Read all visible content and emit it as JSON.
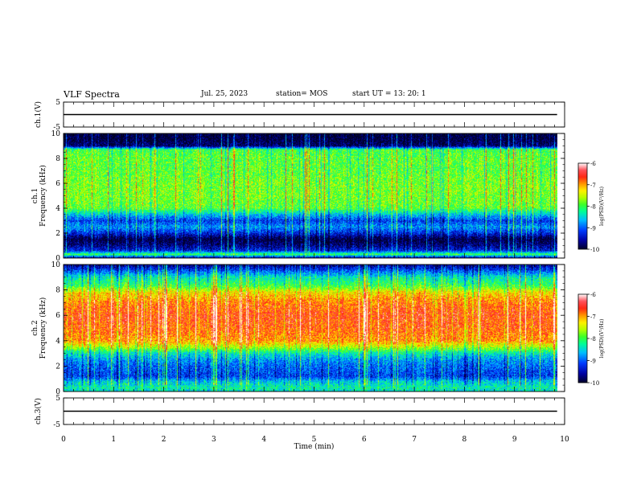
{
  "header": {
    "title": "VLF Spectra",
    "date": "Jul. 25, 2023",
    "station": "station= MOS",
    "start_ut": "start  UT =   13: 20: 1"
  },
  "chart_data": [
    {
      "type": "line",
      "ylabel": "ch.1(V)",
      "yticks": [
        "5",
        "-5"
      ],
      "ylim": [
        -5,
        5
      ],
      "x": [
        0,
        9.85
      ],
      "values": [
        0,
        0
      ]
    },
    {
      "type": "heatmap",
      "ylabel_line1": "ch.1",
      "ylabel_line2": "Frequency (kHz)",
      "yticks": [
        "0",
        "2",
        "4",
        "6",
        "8",
        "10"
      ],
      "ylim": [
        0,
        10
      ],
      "colorbar": {
        "label": "log(PSD)(V²/Hz)",
        "ticks": [
          "-6",
          "-7",
          "-8",
          "-9",
          "-10"
        ],
        "range": [
          -10,
          -6
        ]
      },
      "profile_freq_khz": [
        0.0,
        0.3,
        0.6,
        1.0,
        1.5,
        2.0,
        2.5,
        3.0,
        3.5,
        4.0,
        5.0,
        6.0,
        7.0,
        8.0,
        8.7,
        9.0,
        9.5,
        10.0
      ],
      "profile_log_psd": [
        -9.6,
        -8.0,
        -9.3,
        -9.7,
        -10.0,
        -9.3,
        -8.8,
        -9.2,
        -8.6,
        -7.9,
        -7.8,
        -7.8,
        -7.9,
        -7.9,
        -8.0,
        -9.8,
        -10.0,
        -10.0
      ]
    },
    {
      "type": "heatmap",
      "ylabel_line1": "ch.2",
      "ylabel_line2": "Frequency (kHz)",
      "yticks": [
        "0",
        "2",
        "4",
        "6",
        "8",
        "10"
      ],
      "ylim": [
        0,
        10
      ],
      "colorbar": {
        "label": "log(PSD)(V²/Hz)",
        "ticks": [
          "-6",
          "-7",
          "-8",
          "-9",
          "-10"
        ],
        "range": [
          -10,
          -6
        ]
      },
      "profile_freq_khz": [
        0.0,
        0.3,
        0.8,
        1.2,
        2.0,
        2.5,
        3.0,
        3.5,
        4.0,
        5.0,
        6.0,
        7.0,
        7.8,
        8.3,
        9.0,
        9.6,
        10.0
      ],
      "profile_log_psd": [
        -8.5,
        -8.3,
        -8.6,
        -9.2,
        -9.0,
        -8.8,
        -8.4,
        -7.6,
        -7.0,
        -6.8,
        -6.7,
        -6.9,
        -7.3,
        -8.0,
        -8.4,
        -9.2,
        -9.7
      ]
    },
    {
      "type": "line",
      "ylabel": "ch.3(V)",
      "yticks": [
        "5",
        "-5"
      ],
      "ylim": [
        -5,
        5
      ],
      "x": [
        0,
        9.85
      ],
      "values": [
        0,
        0
      ]
    }
  ],
  "xaxis": {
    "label": "Time (min)",
    "ticks": [
      "0",
      "1",
      "2",
      "3",
      "4",
      "5",
      "6",
      "7",
      "8",
      "9",
      "10"
    ],
    "xlim": [
      0,
      10
    ]
  }
}
